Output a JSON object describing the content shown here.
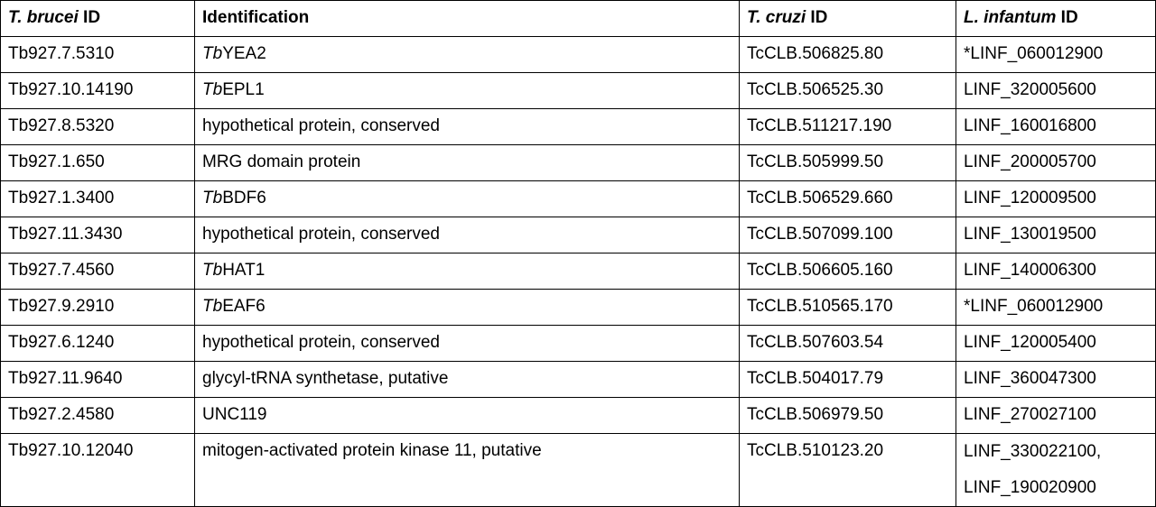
{
  "table": {
    "header": [
      [
        {
          "text": "T. brucei",
          "italic": true
        },
        {
          "text": " ID"
        }
      ],
      "Identification",
      [
        {
          "text": "T. cruzi",
          "italic": true
        },
        {
          "text": " ID"
        }
      ],
      [
        {
          "text": "L. infantum",
          "italic": true
        },
        {
          "text": " ID"
        }
      ]
    ],
    "rows": [
      [
        "Tb927.7.5310",
        [
          {
            "text": "Tb",
            "italic": true
          },
          {
            "text": "YEA2"
          }
        ],
        "TcCLB.506825.80",
        "*LINF_060012900"
      ],
      [
        "Tb927.10.14190",
        [
          {
            "text": "Tb",
            "italic": true
          },
          {
            "text": "EPL1"
          }
        ],
        "TcCLB.506525.30",
        "LINF_320005600"
      ],
      [
        "Tb927.8.5320",
        "hypothetical protein, conserved",
        "TcCLB.511217.190",
        "LINF_160016800"
      ],
      [
        "Tb927.1.650",
        "MRG domain protein",
        "TcCLB.505999.50",
        "LINF_200005700"
      ],
      [
        "Tb927.1.3400",
        [
          {
            "text": "Tb",
            "italic": true
          },
          {
            "text": "BDF6"
          }
        ],
        "TcCLB.506529.660",
        "LINF_120009500"
      ],
      [
        "Tb927.11.3430",
        "hypothetical protein, conserved",
        "TcCLB.507099.100",
        "LINF_130019500"
      ],
      [
        "Tb927.7.4560",
        [
          {
            "text": "Tb",
            "italic": true
          },
          {
            "text": "HAT1"
          }
        ],
        "TcCLB.506605.160",
        "LINF_140006300"
      ],
      [
        "Tb927.9.2910",
        [
          {
            "text": "Tb",
            "italic": true
          },
          {
            "text": "EAF6"
          }
        ],
        "TcCLB.510565.170",
        "*LINF_060012900"
      ],
      [
        "Tb927.6.1240",
        "hypothetical protein, conserved",
        "TcCLB.507603.54",
        "LINF_120005400"
      ],
      [
        "Tb927.11.9640",
        "glycyl-tRNA synthetase, putative",
        "TcCLB.504017.79",
        "LINF_360047300"
      ],
      [
        "Tb927.2.4580",
        "UNC119",
        "TcCLB.506979.50",
        "LINF_270027100"
      ],
      [
        "Tb927.10.12040",
        "mitogen-activated protein kinase 11, putative",
        "TcCLB.510123.20",
        [
          "LINF_330022100,",
          "LINF_190020900"
        ]
      ]
    ]
  }
}
